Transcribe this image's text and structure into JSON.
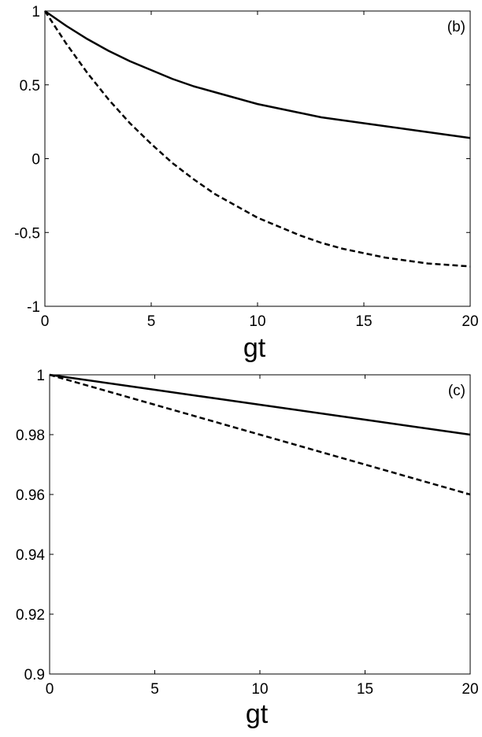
{
  "chart_data": [
    {
      "type": "line",
      "panel_label": "(b)",
      "xlabel": "gt",
      "ylabel": "",
      "xlim": [
        0,
        20
      ],
      "ylim": [
        -1,
        1
      ],
      "xticks": [
        0,
        5,
        10,
        15,
        20
      ],
      "yticks": [
        -1,
        -0.5,
        0,
        0.5,
        1
      ],
      "xtick_labels": [
        "0",
        "5",
        "10",
        "15",
        "20"
      ],
      "ytick_labels": [
        "-1",
        "-0.5",
        "0",
        "0.5",
        "1"
      ],
      "grid": false,
      "series": [
        {
          "style": "solid",
          "color": "#000000",
          "x": [
            0,
            1,
            2,
            3,
            4,
            5,
            6,
            7,
            8,
            9,
            10,
            11,
            12,
            13,
            14,
            15,
            16,
            17,
            18,
            19,
            20
          ],
          "y": [
            1.0,
            0.9,
            0.81,
            0.73,
            0.66,
            0.6,
            0.54,
            0.49,
            0.45,
            0.41,
            0.37,
            0.34,
            0.31,
            0.28,
            0.26,
            0.24,
            0.22,
            0.2,
            0.18,
            0.16,
            0.14
          ]
        },
        {
          "style": "dashed",
          "color": "#000000",
          "x": [
            0,
            1,
            2,
            3,
            4,
            5,
            6,
            7,
            8,
            9,
            10,
            11,
            12,
            13,
            14,
            15,
            16,
            17,
            18,
            19,
            20
          ],
          "y": [
            1.0,
            0.78,
            0.58,
            0.4,
            0.24,
            0.1,
            -0.03,
            -0.14,
            -0.24,
            -0.32,
            -0.4,
            -0.46,
            -0.52,
            -0.57,
            -0.61,
            -0.64,
            -0.67,
            -0.69,
            -0.71,
            -0.72,
            -0.73
          ]
        }
      ]
    },
    {
      "type": "line",
      "panel_label": "(c)",
      "xlabel": "gt",
      "ylabel": "",
      "xlim": [
        0,
        20
      ],
      "ylim": [
        0.9,
        1
      ],
      "xticks": [
        0,
        5,
        10,
        15,
        20
      ],
      "yticks": [
        0.9,
        0.92,
        0.94,
        0.96,
        0.98,
        1
      ],
      "xtick_labels": [
        "0",
        "5",
        "10",
        "15",
        "20"
      ],
      "ytick_labels": [
        "0.9",
        "0.92",
        "0.94",
        "0.96",
        "0.98",
        "1"
      ],
      "grid": false,
      "series": [
        {
          "style": "solid",
          "color": "#000000",
          "x": [
            0,
            5,
            10,
            15,
            20
          ],
          "y": [
            1.0,
            0.995,
            0.99,
            0.985,
            0.98
          ]
        },
        {
          "style": "dashed",
          "color": "#000000",
          "x": [
            0,
            5,
            10,
            15,
            20
          ],
          "y": [
            1.0,
            0.99,
            0.98,
            0.97,
            0.96
          ]
        }
      ]
    }
  ]
}
